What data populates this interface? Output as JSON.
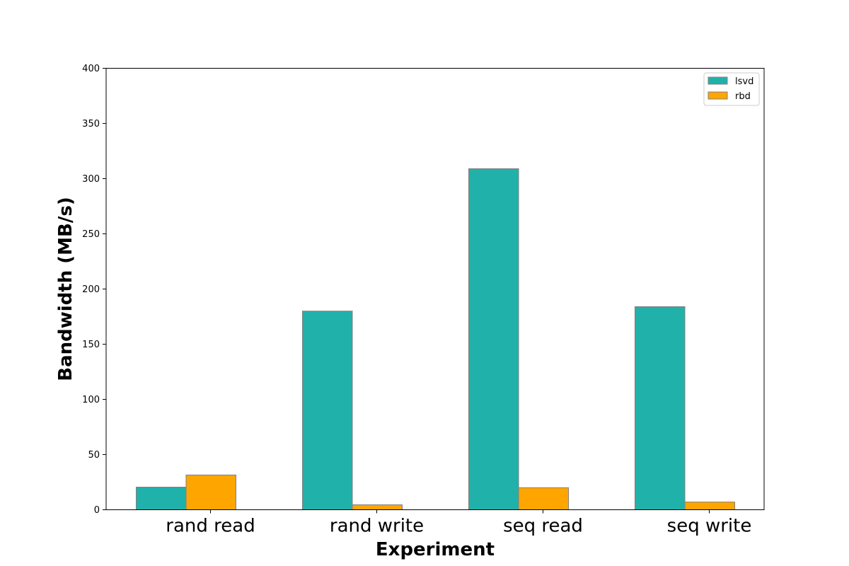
{
  "chart_data": {
    "type": "bar",
    "title": "",
    "xlabel": "Experiment",
    "ylabel": "Bandwidth (MB/s)",
    "categories": [
      "rand read",
      "rand write",
      "seq read",
      "seq write"
    ],
    "series": [
      {
        "name": "lsvd",
        "values": [
          20.5,
          180,
          309,
          184
        ],
        "color": "#20b2aa"
      },
      {
        "name": "rbd",
        "values": [
          31.5,
          4.5,
          20,
          7
        ],
        "color": "#ffa500"
      }
    ],
    "ylim": [
      0,
      400
    ],
    "yticks": [
      0,
      50,
      100,
      150,
      200,
      250,
      300,
      350,
      400
    ],
    "ytick_labels": [
      "0",
      "50",
      "100",
      "150",
      "200",
      "250",
      "300",
      "350",
      "400"
    ],
    "grid": false,
    "legend_position": "top-right",
    "bar_edge_color": "#808080"
  }
}
